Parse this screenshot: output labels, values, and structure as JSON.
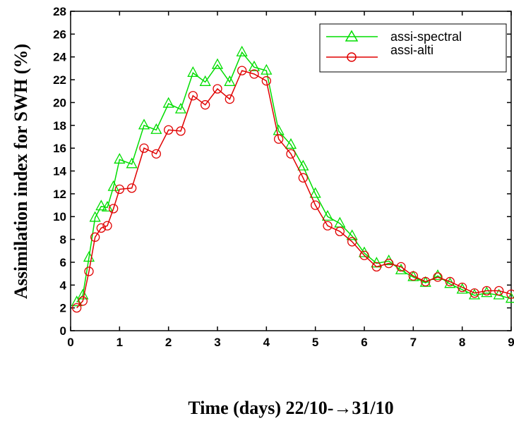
{
  "chart_data": {
    "type": "line",
    "xlabel": "Time (days)  22/10-→31/10",
    "ylabel": "Assimilation index for SWH (%)",
    "xlim": [
      0,
      9
    ],
    "ylim": [
      0,
      28
    ],
    "xticks": [
      "0",
      "1",
      "2",
      "3",
      "4",
      "5",
      "6",
      "7",
      "8",
      "9"
    ],
    "yticks": [
      "0",
      "2",
      "4",
      "6",
      "8",
      "10",
      "12",
      "14",
      "16",
      "18",
      "20",
      "22",
      "24",
      "26",
      "28"
    ],
    "grid": false,
    "legend_position": "top-right",
    "series": [
      {
        "name": "assi-spectral",
        "color": "#00dd00",
        "marker": "triangle",
        "x": [
          0.125,
          0.25,
          0.375,
          0.5,
          0.625,
          0.75,
          0.875,
          1.0,
          1.25,
          1.5,
          1.75,
          2.0,
          2.25,
          2.5,
          2.75,
          3.0,
          3.25,
          3.5,
          3.75,
          4.0,
          4.25,
          4.5,
          4.75,
          5.0,
          5.25,
          5.5,
          5.75,
          6.0,
          6.25,
          6.5,
          6.75,
          7.0,
          7.25,
          7.5,
          7.75,
          8.0,
          8.25,
          8.5,
          8.75,
          9.0
        ],
        "y": [
          2.5,
          3.1,
          6.4,
          9.9,
          10.9,
          10.8,
          12.6,
          15.0,
          14.6,
          18.0,
          17.6,
          19.9,
          19.4,
          22.6,
          21.8,
          23.3,
          21.8,
          24.4,
          23.1,
          22.8,
          17.5,
          16.3,
          14.4,
          12.0,
          10.0,
          9.4,
          8.3,
          6.8,
          5.9,
          6.1,
          5.3,
          4.7,
          4.2,
          4.8,
          4.1,
          3.6,
          3.1,
          3.3,
          3.1,
          2.8
        ]
      },
      {
        "name": "assi-alti",
        "color": "#e00000",
        "marker": "circle",
        "x": [
          0.125,
          0.25,
          0.375,
          0.5,
          0.625,
          0.75,
          0.875,
          1.0,
          1.25,
          1.5,
          1.75,
          2.0,
          2.25,
          2.5,
          2.75,
          3.0,
          3.25,
          3.5,
          3.75,
          4.0,
          4.25,
          4.5,
          4.75,
          5.0,
          5.25,
          5.5,
          5.75,
          6.0,
          6.25,
          6.5,
          6.75,
          7.0,
          7.25,
          7.5,
          7.75,
          8.0,
          8.25,
          8.5,
          8.75,
          9.0
        ],
        "y": [
          2.0,
          2.6,
          5.2,
          8.2,
          9.0,
          9.2,
          10.7,
          12.4,
          12.5,
          16.0,
          15.5,
          17.6,
          17.5,
          20.6,
          19.8,
          21.2,
          20.3,
          22.8,
          22.5,
          21.9,
          16.8,
          15.5,
          13.4,
          11.0,
          9.2,
          8.7,
          7.8,
          6.6,
          5.6,
          5.9,
          5.6,
          4.8,
          4.3,
          4.7,
          4.3,
          3.8,
          3.3,
          3.5,
          3.5,
          3.2
        ]
      }
    ]
  }
}
